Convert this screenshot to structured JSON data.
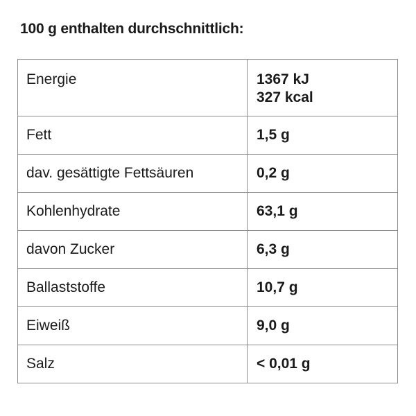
{
  "title": "100 g enthalten durchschnittlich:",
  "rows": [
    {
      "label": "Energie",
      "value": "1367 kJ",
      "value_2": "327 kcal"
    },
    {
      "label": "Fett",
      "value": "1,5 g"
    },
    {
      "label": "dav. gesättigte Fettsäuren",
      "value": "0,2 g"
    },
    {
      "label": "Kohlenhydrate",
      "value": "63,1 g"
    },
    {
      "label": "davon Zucker",
      "value": "6,3 g"
    },
    {
      "label": "Ballaststoffe",
      "value": "10,7 g"
    },
    {
      "label": "Eiweiß",
      "value": "9,0 g"
    },
    {
      "label": "Salz",
      "value": "< 0,01 g"
    }
  ]
}
